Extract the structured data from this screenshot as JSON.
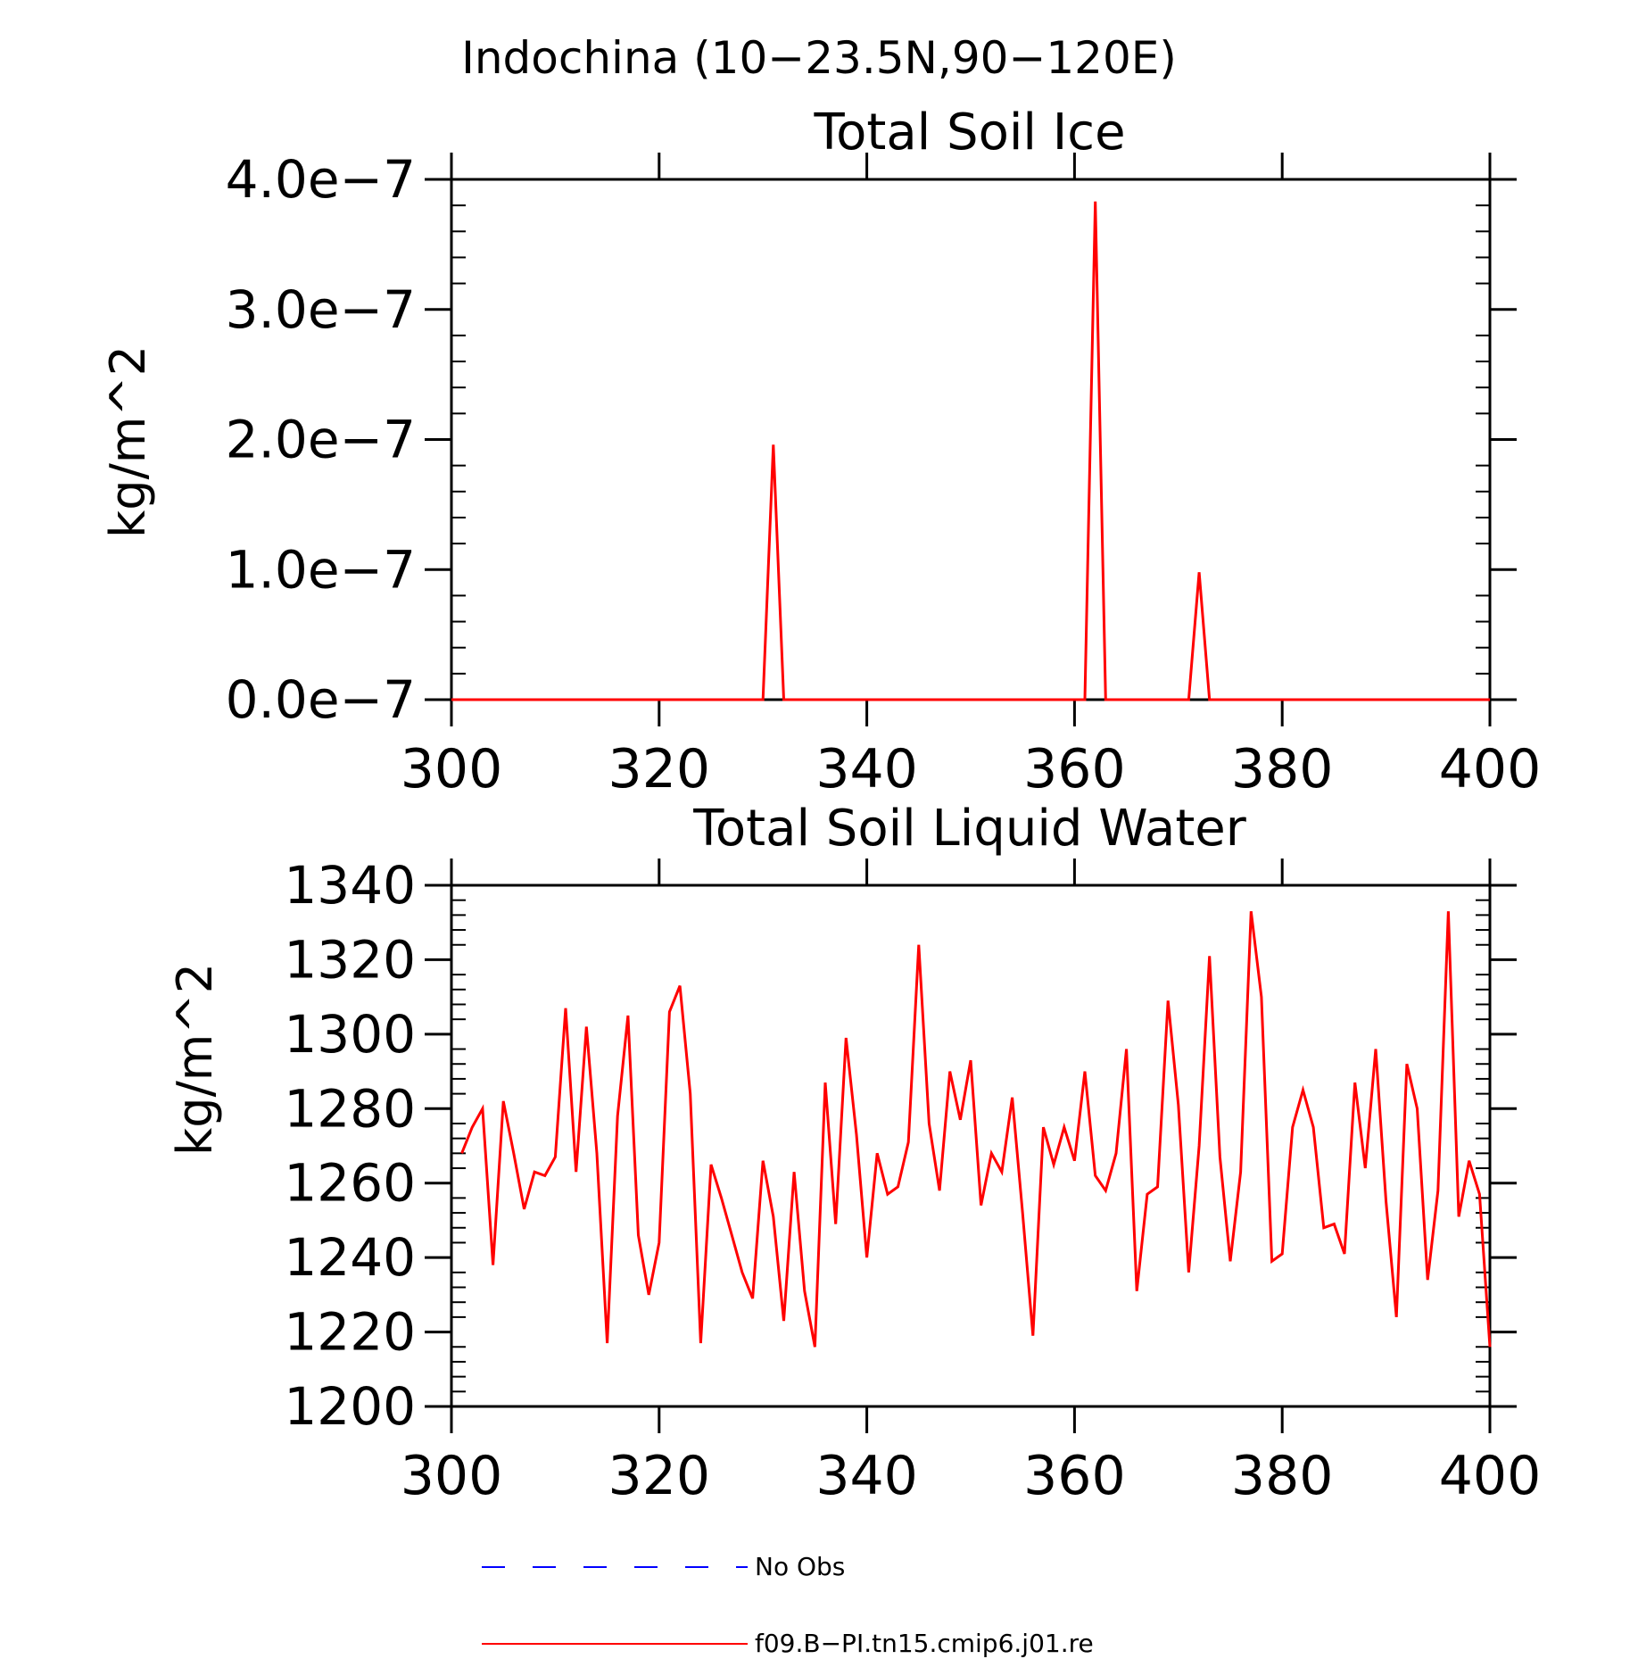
{
  "figure_title": "Indochina (10−23.5N,90−120E)",
  "colors": {
    "model": "#ff0000",
    "obs": "#0000ff",
    "axis": "#000000"
  },
  "legend": {
    "obs_label": "No Obs",
    "model_label": "f09.B−PI.tn15.cmip6.j01.re"
  },
  "chart_data": [
    {
      "type": "line",
      "title": "Total Soil Ice",
      "xlabel": "",
      "ylabel": "kg/m^2",
      "xlim": [
        300,
        400
      ],
      "ylim": [
        0,
        4e-07
      ],
      "xticks": [
        300,
        320,
        340,
        360,
        380,
        400
      ],
      "xtick_labels": [
        "300",
        "320",
        "340",
        "360",
        "380",
        "400"
      ],
      "yticks": [
        0,
        1e-07,
        2e-07,
        3e-07,
        4e-07
      ],
      "ytick_labels": [
        "0.0e−7",
        "1.0e−7",
        "2.0e−7",
        "3.0e−7",
        "4.0e−7"
      ],
      "series": [
        {
          "name": "f09.B−PI.tn15.cmip6.j01.re",
          "x": [
            300,
            330,
            331,
            332,
            361,
            362,
            363,
            371,
            372,
            373,
            400
          ],
          "y": [
            0,
            0,
            1.96e-07,
            0,
            0,
            3.83e-07,
            0,
            0,
            9.8e-08,
            0,
            0
          ]
        }
      ]
    },
    {
      "type": "line",
      "title": "Total Soil Liquid Water",
      "xlabel": "",
      "ylabel": "kg/m^2",
      "xlim": [
        300,
        400
      ],
      "ylim": [
        1200,
        1340
      ],
      "xticks": [
        300,
        320,
        340,
        360,
        380,
        400
      ],
      "xtick_labels": [
        "300",
        "320",
        "340",
        "360",
        "380",
        "400"
      ],
      "yticks": [
        1200,
        1220,
        1240,
        1260,
        1280,
        1300,
        1320,
        1340
      ],
      "ytick_labels": [
        "1200",
        "1220",
        "1240",
        "1260",
        "1280",
        "1300",
        "1320",
        "1340"
      ],
      "series": [
        {
          "name": "f09.B−PI.tn15.cmip6.j01.re",
          "x": [
            301,
            302,
            303,
            304,
            305,
            306,
            307,
            308,
            309,
            310,
            311,
            312,
            313,
            314,
            315,
            316,
            317,
            318,
            319,
            320,
            321,
            322,
            323,
            324,
            325,
            326,
            327,
            328,
            329,
            330,
            331,
            332,
            333,
            334,
            335,
            336,
            337,
            338,
            339,
            340,
            341,
            342,
            343,
            344,
            345,
            346,
            347,
            348,
            349,
            350,
            351,
            352,
            353,
            354,
            355,
            356,
            357,
            358,
            359,
            360,
            361,
            362,
            363,
            364,
            365,
            366,
            367,
            368,
            369,
            370,
            371,
            372,
            373,
            374,
            375,
            376,
            377,
            378,
            379,
            380,
            381,
            382,
            383,
            384,
            385,
            386,
            387,
            388,
            389,
            390,
            391,
            392,
            393,
            394,
            395,
            396,
            397,
            398,
            399,
            400
          ],
          "y": [
            1268,
            1275,
            1280,
            1238,
            1282,
            1268,
            1253,
            1263,
            1262,
            1267,
            1307,
            1263,
            1302,
            1268,
            1217,
            1278,
            1305,
            1246,
            1230,
            1244,
            1306,
            1313,
            1284,
            1217,
            1265,
            1256,
            1246,
            1236,
            1229,
            1266,
            1251,
            1223,
            1263,
            1231,
            1216,
            1287,
            1249,
            1299,
            1273,
            1240,
            1268,
            1257,
            1259,
            1271,
            1324,
            1276,
            1258,
            1290,
            1277,
            1293,
            1254,
            1268,
            1263,
            1283,
            1252,
            1219,
            1275,
            1265,
            1275,
            1266,
            1290,
            1262,
            1258,
            1268,
            1296,
            1231,
            1257,
            1259,
            1309,
            1281,
            1236,
            1270,
            1321,
            1267,
            1239,
            1263,
            1333,
            1310,
            1239,
            1241,
            1275,
            1285,
            1275,
            1248,
            1249,
            1241,
            1287,
            1264,
            1296,
            1255,
            1224,
            1292,
            1280,
            1234,
            1258,
            1333,
            1251,
            1266,
            1257,
            1216
          ]
        }
      ]
    }
  ]
}
